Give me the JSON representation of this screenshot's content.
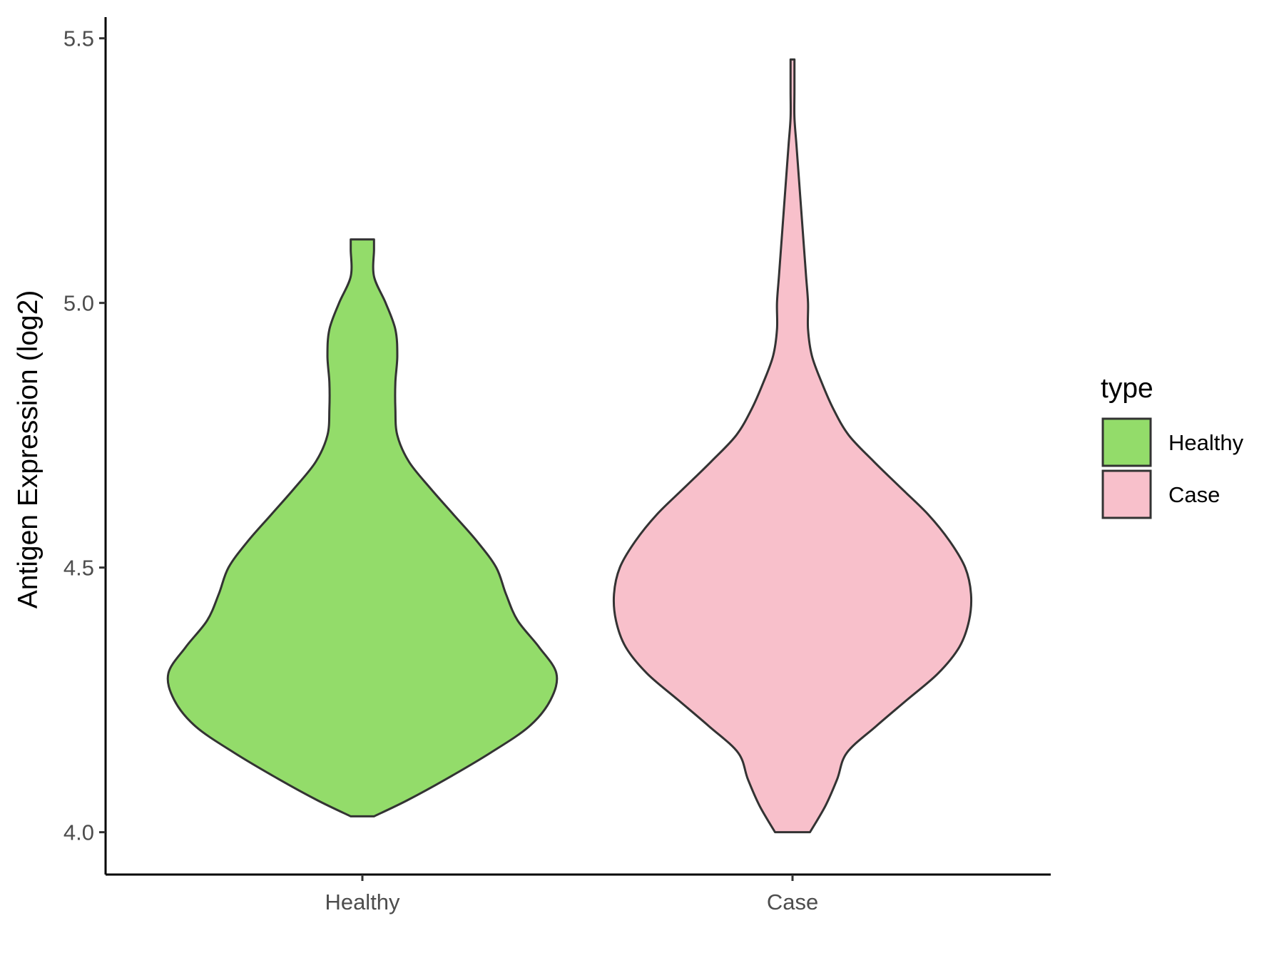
{
  "chart_data": {
    "type": "violin",
    "ylabel": "Antigen Expression (log2)",
    "xlabel": "",
    "ylim": [
      3.92,
      5.54
    ],
    "yticks": [
      4.0,
      4.5,
      5.0,
      5.5
    ],
    "ytick_labels": [
      "4.0",
      "4.5",
      "5.0",
      "5.5"
    ],
    "categories": [
      "Healthy",
      "Case"
    ],
    "grid": false,
    "legend": {
      "title": "type",
      "position": "right"
    },
    "series": [
      {
        "name": "Healthy",
        "color": "#93DC6A",
        "min": 4.03,
        "max": 5.12,
        "density": [
          [
            4.03,
            0.06
          ],
          [
            4.06,
            0.23
          ],
          [
            4.1,
            0.43
          ],
          [
            4.15,
            0.66
          ],
          [
            4.2,
            0.86
          ],
          [
            4.25,
            0.97
          ],
          [
            4.3,
            1.0
          ],
          [
            4.35,
            0.91
          ],
          [
            4.4,
            0.8
          ],
          [
            4.45,
            0.74
          ],
          [
            4.5,
            0.69
          ],
          [
            4.55,
            0.59
          ],
          [
            4.6,
            0.47
          ],
          [
            4.65,
            0.35
          ],
          [
            4.7,
            0.24
          ],
          [
            4.75,
            0.18
          ],
          [
            4.8,
            0.17
          ],
          [
            4.85,
            0.17
          ],
          [
            4.9,
            0.18
          ],
          [
            4.95,
            0.17
          ],
          [
            5.0,
            0.12
          ],
          [
            5.05,
            0.06
          ],
          [
            5.1,
            0.06
          ],
          [
            5.12,
            0.06
          ]
        ]
      },
      {
        "name": "Case",
        "color": "#F8C0CB",
        "min": 4.0,
        "max": 5.46,
        "density": [
          [
            4.0,
            0.09
          ],
          [
            4.05,
            0.17
          ],
          [
            4.1,
            0.23
          ],
          [
            4.15,
            0.28
          ],
          [
            4.2,
            0.43
          ],
          [
            4.25,
            0.59
          ],
          [
            4.3,
            0.75
          ],
          [
            4.35,
            0.86
          ],
          [
            4.4,
            0.91
          ],
          [
            4.45,
            0.92
          ],
          [
            4.5,
            0.89
          ],
          [
            4.55,
            0.81
          ],
          [
            4.6,
            0.7
          ],
          [
            4.65,
            0.56
          ],
          [
            4.7,
            0.42
          ],
          [
            4.75,
            0.29
          ],
          [
            4.8,
            0.21
          ],
          [
            4.85,
            0.15
          ],
          [
            4.9,
            0.1
          ],
          [
            4.95,
            0.08
          ],
          [
            5.0,
            0.08
          ],
          [
            5.05,
            0.07
          ],
          [
            5.1,
            0.06
          ],
          [
            5.15,
            0.05
          ],
          [
            5.2,
            0.04
          ],
          [
            5.25,
            0.03
          ],
          [
            5.3,
            0.02
          ],
          [
            5.35,
            0.01
          ],
          [
            5.4,
            0.01
          ],
          [
            5.46,
            0.01
          ]
        ]
      }
    ]
  }
}
